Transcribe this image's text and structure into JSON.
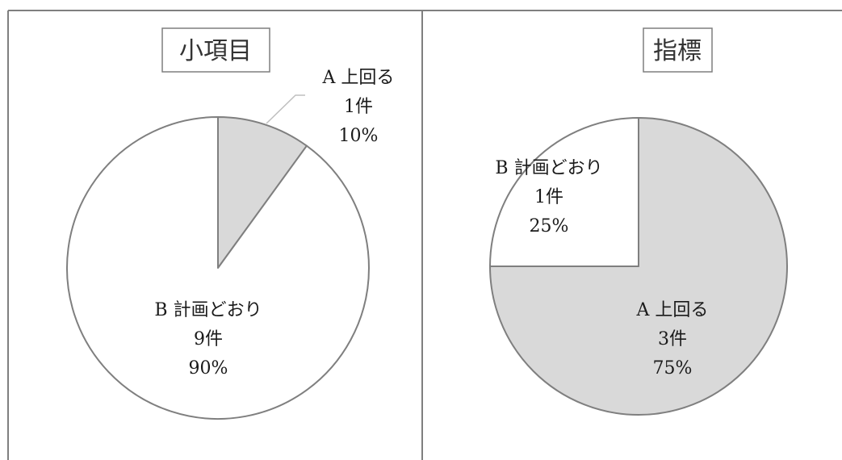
{
  "chart_data": [
    {
      "type": "pie",
      "title": "小項目",
      "start_angle_deg": 0,
      "direction": "clockwise",
      "slices": [
        {
          "name": "A 上回る",
          "count_label": "1件",
          "percent_label": "10%",
          "value": 1,
          "color": "#d9d9d9"
        },
        {
          "name": "B 計画どおり",
          "count_label": "9件",
          "percent_label": "90%",
          "value": 9,
          "color": "#ffffff"
        }
      ]
    },
    {
      "type": "pie",
      "title": "指標",
      "start_angle_deg": 0,
      "direction": "clockwise",
      "slices": [
        {
          "name": "A 上回る",
          "count_label": "3件",
          "percent_label": "75%",
          "value": 3,
          "color": "#d9d9d9"
        },
        {
          "name": "B 計画どおり",
          "count_label": "1件",
          "percent_label": "25%",
          "value": 1,
          "color": "#ffffff"
        }
      ]
    }
  ],
  "colors": {
    "slice_outline": "#7f7f7f",
    "panel_border": "#7f7f7f",
    "title_border": "#7f7f7f"
  }
}
